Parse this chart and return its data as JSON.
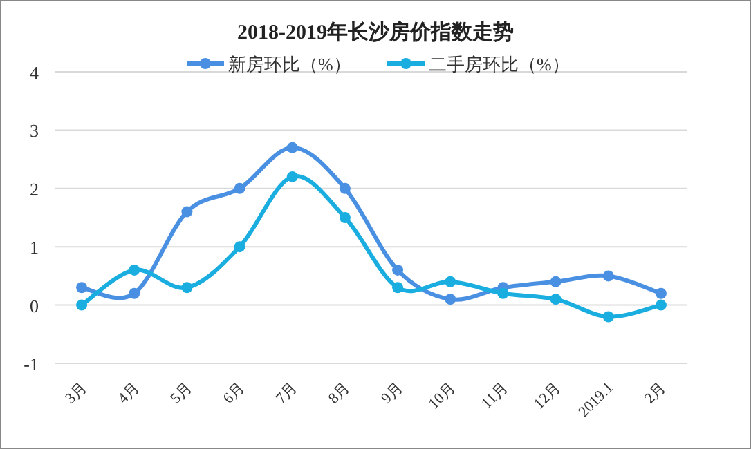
{
  "chart_data": {
    "type": "line",
    "title": "2018-2019年长沙房价指数走势",
    "categories": [
      "3月",
      "4月",
      "5月",
      "6月",
      "7月",
      "8月",
      "9月",
      "10月",
      "11月",
      "12月",
      "2019.1",
      "2月"
    ],
    "series": [
      {
        "name": "新房环比（%）",
        "color": "#4a90e2",
        "values": [
          0.3,
          0.2,
          1.6,
          2.0,
          2.7,
          2.0,
          0.6,
          0.1,
          0.3,
          0.4,
          0.5,
          0.2
        ]
      },
      {
        "name": "二手房环比（%）",
        "color": "#1aaee0",
        "values": [
          0,
          0.6,
          0.3,
          1.0,
          2.2,
          1.5,
          0.3,
          0.4,
          0.2,
          0.1,
          -0.2,
          0
        ]
      }
    ],
    "ylim": [
      -1,
      4
    ],
    "yticks": [
      -1,
      0,
      1,
      2,
      3,
      4
    ],
    "grid": "y",
    "legend": "top",
    "marker": "circle",
    "line_style": "solid"
  }
}
